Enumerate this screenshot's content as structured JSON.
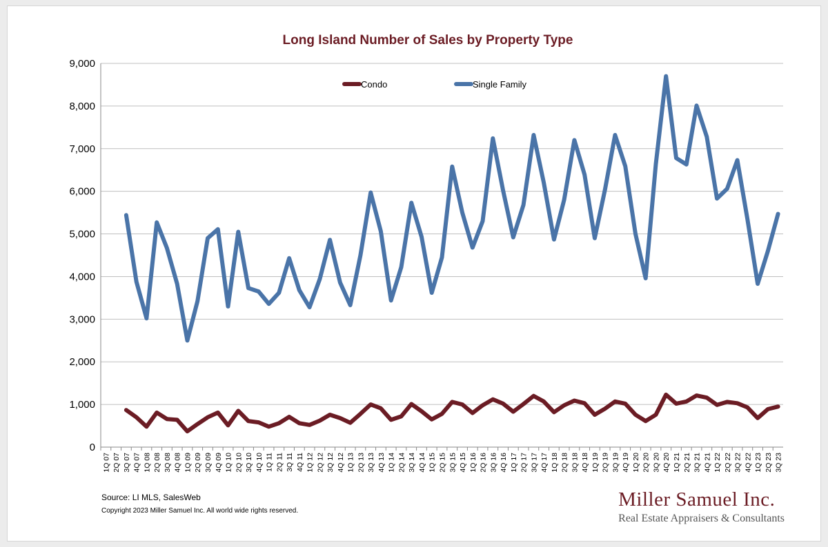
{
  "chart_data": {
    "type": "line",
    "title": "Long Island Number of Sales by Property Type",
    "xlabel": "",
    "ylabel": "",
    "ylim": [
      0,
      9000
    ],
    "yticks": [
      "0",
      "1,000",
      "2,000",
      "3,000",
      "4,000",
      "5,000",
      "6,000",
      "7,000",
      "8,000",
      "9,000"
    ],
    "grid": true,
    "legend_position": "top-center",
    "categories": [
      "1Q 07",
      "2Q 07",
      "3Q 07",
      "4Q 07",
      "1Q 08",
      "2Q 08",
      "3Q 08",
      "4Q 08",
      "1Q 09",
      "2Q 09",
      "3Q 09",
      "4Q 09",
      "1Q 10",
      "2Q 10",
      "3Q 10",
      "4Q 10",
      "1Q 11",
      "2Q 11",
      "3Q 11",
      "4Q 11",
      "1Q 12",
      "2Q 12",
      "3Q 12",
      "4Q 12",
      "1Q 13",
      "2Q 13",
      "3Q 13",
      "4Q 13",
      "1Q 14",
      "2Q 14",
      "3Q 14",
      "4Q 14",
      "1Q 15",
      "2Q 15",
      "3Q 15",
      "4Q 15",
      "1Q 16",
      "2Q 16",
      "3Q 16",
      "4Q 16",
      "1Q 17",
      "2Q 17",
      "3Q 17",
      "4Q 17",
      "1Q 18",
      "2Q 18",
      "3Q 18",
      "4Q 18",
      "1Q 19",
      "2Q 19",
      "3Q 19",
      "4Q 19",
      "1Q 20",
      "2Q 20",
      "3Q 20",
      "4Q 20",
      "1Q 21",
      "2Q 21",
      "3Q 21",
      "4Q 21",
      "1Q 22",
      "2Q 22",
      "3Q 22",
      "4Q 22",
      "1Q 23",
      "2Q 23",
      "3Q 23"
    ],
    "series": [
      {
        "name": "Condo",
        "color": "#6b1c24",
        "values": [
          null,
          null,
          870,
          700,
          480,
          810,
          660,
          640,
          370,
          540,
          700,
          810,
          510,
          850,
          610,
          580,
          480,
          560,
          710,
          560,
          520,
          620,
          760,
          680,
          570,
          780,
          1000,
          910,
          640,
          720,
          1010,
          840,
          650,
          780,
          1060,
          1000,
          800,
          980,
          1120,
          1020,
          830,
          1010,
          1200,
          1070,
          820,
          980,
          1090,
          1030,
          760,
          900,
          1070,
          1020,
          760,
          610,
          760,
          1230,
          1020,
          1070,
          1210,
          1160,
          990,
          1060,
          1030,
          930,
          680,
          890,
          950
        ]
      },
      {
        "name": "Single Family",
        "color": "#4a74a8",
        "values": [
          null,
          null,
          5440,
          3880,
          3020,
          5270,
          4670,
          3830,
          2500,
          3420,
          4900,
          5110,
          3300,
          5050,
          3730,
          3650,
          3360,
          3620,
          4430,
          3680,
          3280,
          3940,
          4860,
          3860,
          3330,
          4500,
          5970,
          5060,
          3440,
          4220,
          5730,
          4930,
          3620,
          4450,
          6580,
          5500,
          4680,
          5300,
          7240,
          6020,
          4920,
          5680,
          7320,
          6200,
          4870,
          5800,
          7200,
          6390,
          4900,
          6030,
          7320,
          6590,
          5000,
          3960,
          6640,
          8700,
          6780,
          6630,
          8010,
          7280,
          5830,
          6060,
          6730,
          5340,
          3830,
          4600,
          5470
        ]
      }
    ]
  },
  "footer": {
    "source": "Source:  LI MLS, SalesWeb",
    "copyright": "Copyright 2023 Miller Samuel Inc.  All world wide rights reserved.",
    "brand_name": "Miller Samuel Inc.",
    "brand_tagline": "Real Estate Appraisers & Consultants"
  },
  "colors": {
    "title": "#6b1c24",
    "condo": "#6b1c24",
    "single_family": "#4a74a8",
    "grid": "#bfbfbf",
    "brand": "#6b1c24"
  }
}
